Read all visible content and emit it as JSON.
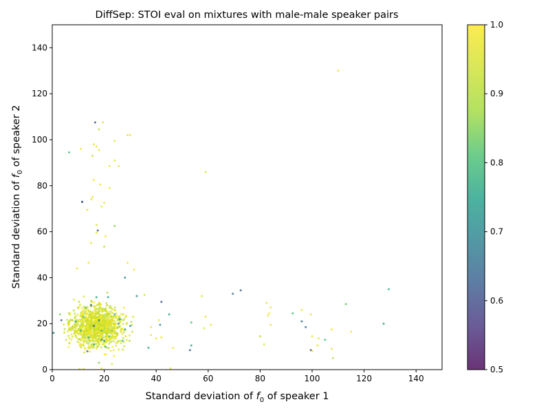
{
  "chart_data": {
    "type": "scatter",
    "title": "DiffSep: STOI eval on mixtures with male-male speaker pairs",
    "xlabel_prefix": "Standard deviation of ",
    "xlabel_f": "f",
    "xlabel_sub": "0",
    "xlabel_suffix": " of speaker 1",
    "ylabel_prefix": "Standard deviation of ",
    "ylabel_f": "f",
    "ylabel_sub": "0",
    "ylabel_suffix": " of speaker 2",
    "xlim": [
      0,
      150
    ],
    "ylim": [
      0,
      150
    ],
    "xticks": [
      0,
      20,
      40,
      60,
      80,
      100,
      120,
      140
    ],
    "yticks": [
      0,
      20,
      40,
      60,
      80,
      100,
      120,
      140
    ],
    "colorbar": {
      "colormap": "viridis",
      "alpha": 0.8,
      "range": [
        0.5,
        1.0
      ],
      "ticks": [
        "0.5",
        "0.6",
        "0.7",
        "0.8",
        "0.9",
        "1.0"
      ]
    },
    "grid": false,
    "cluster": {
      "note_hidden": true,
      "count": 1100,
      "center": [
        17,
        19
      ],
      "spread": [
        7,
        6
      ],
      "value_range": [
        0.9,
        1.0
      ]
    },
    "points": [
      [
        110,
        130,
        0.98
      ],
      [
        16.5,
        107.5,
        0.6
      ],
      [
        19.5,
        107.5,
        0.97
      ],
      [
        18,
        104.5,
        0.92
      ],
      [
        29,
        102,
        0.96
      ],
      [
        30,
        102,
        0.97
      ],
      [
        24,
        99.5,
        0.96
      ],
      [
        16,
        98,
        0.96
      ],
      [
        17,
        97,
        0.97
      ],
      [
        11,
        96,
        0.98
      ],
      [
        6.5,
        94.5,
        0.8
      ],
      [
        18,
        95.5,
        0.96
      ],
      [
        15.5,
        93,
        0.92
      ],
      [
        24,
        91,
        0.96
      ],
      [
        22,
        88.5,
        0.97
      ],
      [
        25.5,
        88.5,
        0.97
      ],
      [
        59,
        86,
        0.95
      ],
      [
        16,
        82.5,
        0.97
      ],
      [
        18.5,
        80.5,
        0.97
      ],
      [
        22,
        79,
        0.97
      ],
      [
        15,
        74,
        0.97
      ],
      [
        15.5,
        75,
        0.97
      ],
      [
        11.5,
        73,
        0.6
      ],
      [
        20,
        72.5,
        0.97
      ],
      [
        19,
        71,
        0.96
      ],
      [
        13.5,
        69.5,
        0.96
      ],
      [
        17,
        63,
        0.97
      ],
      [
        24,
        62.5,
        0.85
      ],
      [
        17.5,
        60.5,
        0.6
      ],
      [
        17,
        59.5,
        0.97
      ],
      [
        20.5,
        58,
        0.97
      ],
      [
        15,
        55,
        0.96
      ],
      [
        20,
        53.5,
        0.92
      ],
      [
        29,
        46.5,
        0.97
      ],
      [
        14,
        46.5,
        0.97
      ],
      [
        9.5,
        44,
        0.97
      ],
      [
        31.5,
        43.5,
        0.97
      ],
      [
        28,
        40,
        0.7
      ],
      [
        35.5,
        32.5,
        0.95
      ],
      [
        42,
        29.5,
        0.62
      ],
      [
        41,
        21.5,
        0.97
      ],
      [
        45,
        24,
        0.75
      ],
      [
        41.5,
        19.5,
        0.7
      ],
      [
        38,
        18.5,
        0.97
      ],
      [
        38,
        15,
        0.97
      ],
      [
        40,
        13.5,
        0.97
      ],
      [
        37,
        9.5,
        0.75
      ],
      [
        42,
        14,
        0.97
      ],
      [
        46.5,
        9.5,
        0.97
      ],
      [
        45.5,
        0.5,
        0.97
      ],
      [
        53,
        8.5,
        0.62
      ],
      [
        53.5,
        10.5,
        0.75
      ],
      [
        53.5,
        20.5,
        0.8
      ],
      [
        57.5,
        32,
        0.96
      ],
      [
        58.5,
        18,
        0.96
      ],
      [
        59,
        23,
        0.97
      ],
      [
        61,
        19.5,
        0.97
      ],
      [
        69.5,
        33,
        0.65
      ],
      [
        72.5,
        34.5,
        0.62
      ],
      [
        80,
        14.5,
        0.9
      ],
      [
        81.5,
        11,
        0.96
      ],
      [
        82.5,
        29,
        0.96
      ],
      [
        83,
        23.5,
        0.97
      ],
      [
        84,
        27,
        0.97
      ],
      [
        84,
        19.5,
        0.97
      ],
      [
        83.5,
        24.5,
        0.97
      ],
      [
        92.5,
        24.5,
        0.8
      ],
      [
        96,
        21,
        0.65
      ],
      [
        97.5,
        18.5,
        0.65
      ],
      [
        96,
        26,
        0.96
      ],
      [
        99.5,
        24,
        0.97
      ],
      [
        99.5,
        8.5,
        0.6
      ],
      [
        100,
        14.5,
        0.97
      ],
      [
        100,
        8,
        0.97
      ],
      [
        102,
        10.5,
        0.97
      ],
      [
        102.5,
        13.5,
        0.97
      ],
      [
        105,
        13,
        0.8
      ],
      [
        107.5,
        17.5,
        0.97
      ],
      [
        107.5,
        9,
        0.96
      ],
      [
        108,
        5,
        0.9
      ],
      [
        113,
        28.5,
        0.82
      ],
      [
        115,
        16.5,
        0.97
      ],
      [
        127.5,
        20,
        0.75
      ],
      [
        129.5,
        35,
        0.77
      ],
      [
        3.5,
        21.5,
        0.62
      ],
      [
        3,
        24,
        0.85
      ],
      [
        11.5,
        73,
        0.6
      ],
      [
        13.5,
        8,
        0.62
      ],
      [
        16,
        19,
        0.62
      ],
      [
        18,
        21.5,
        0.7
      ],
      [
        20,
        12.5,
        0.75
      ],
      [
        22,
        14.5,
        0.8
      ],
      [
        26,
        22,
        0.75
      ],
      [
        14,
        14,
        0.75
      ],
      [
        30,
        19,
        0.72
      ],
      [
        28,
        17.5,
        0.75
      ],
      [
        11,
        17,
        0.78
      ],
      [
        19,
        13,
        0.7
      ],
      [
        24,
        24,
        0.8
      ],
      [
        16,
        11,
        0.75
      ],
      [
        32.5,
        32,
        0.7
      ],
      [
        23,
        17,
        0.82
      ],
      [
        12,
        23,
        0.8
      ],
      [
        21.5,
        31.5,
        0.75
      ],
      [
        15,
        28,
        0.62
      ],
      [
        17,
        31.5,
        0.75
      ],
      [
        19,
        17,
        0.8
      ],
      [
        27,
        12.5,
        0.78
      ],
      [
        9,
        21,
        0.75
      ],
      [
        13,
        27,
        0.82
      ],
      [
        25.5,
        20,
        0.72
      ],
      [
        20.5,
        10,
        0.78
      ],
      [
        0.5,
        16,
        0.7
      ],
      [
        10.5,
        0.3,
        0.97
      ],
      [
        12,
        0.3,
        0.97
      ],
      [
        19,
        0.5,
        0.97
      ],
      [
        23,
        2.5,
        0.97
      ],
      [
        18,
        3,
        0.85
      ]
    ]
  }
}
